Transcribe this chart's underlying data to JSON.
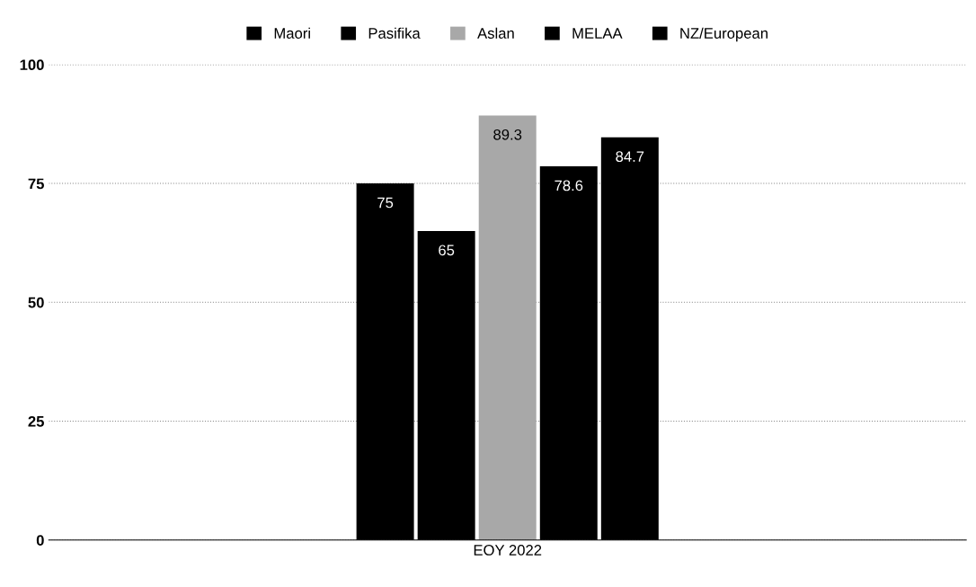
{
  "chart_data": {
    "type": "bar",
    "categories": [
      "EOY 2022"
    ],
    "series": [
      {
        "name": "Maori",
        "color": "#000000",
        "values": [
          75
        ],
        "value_labels": [
          "75"
        ]
      },
      {
        "name": "Pasifika",
        "color": "#000000",
        "values": [
          65
        ],
        "value_labels": [
          "65"
        ]
      },
      {
        "name": "Aslan",
        "color": "#a8a8a8",
        "values": [
          89.3
        ],
        "value_labels": [
          "89.3"
        ]
      },
      {
        "name": "MELAA",
        "color": "#000000",
        "values": [
          78.6
        ],
        "value_labels": [
          "78.6"
        ]
      },
      {
        "name": "NZ/European",
        "color": "#000000",
        "values": [
          84.7
        ],
        "value_labels": [
          "84.7"
        ]
      }
    ],
    "ylim": [
      0,
      100
    ],
    "yticks": [
      0,
      25,
      50,
      75,
      100
    ],
    "grid": "y",
    "legend": "top"
  }
}
